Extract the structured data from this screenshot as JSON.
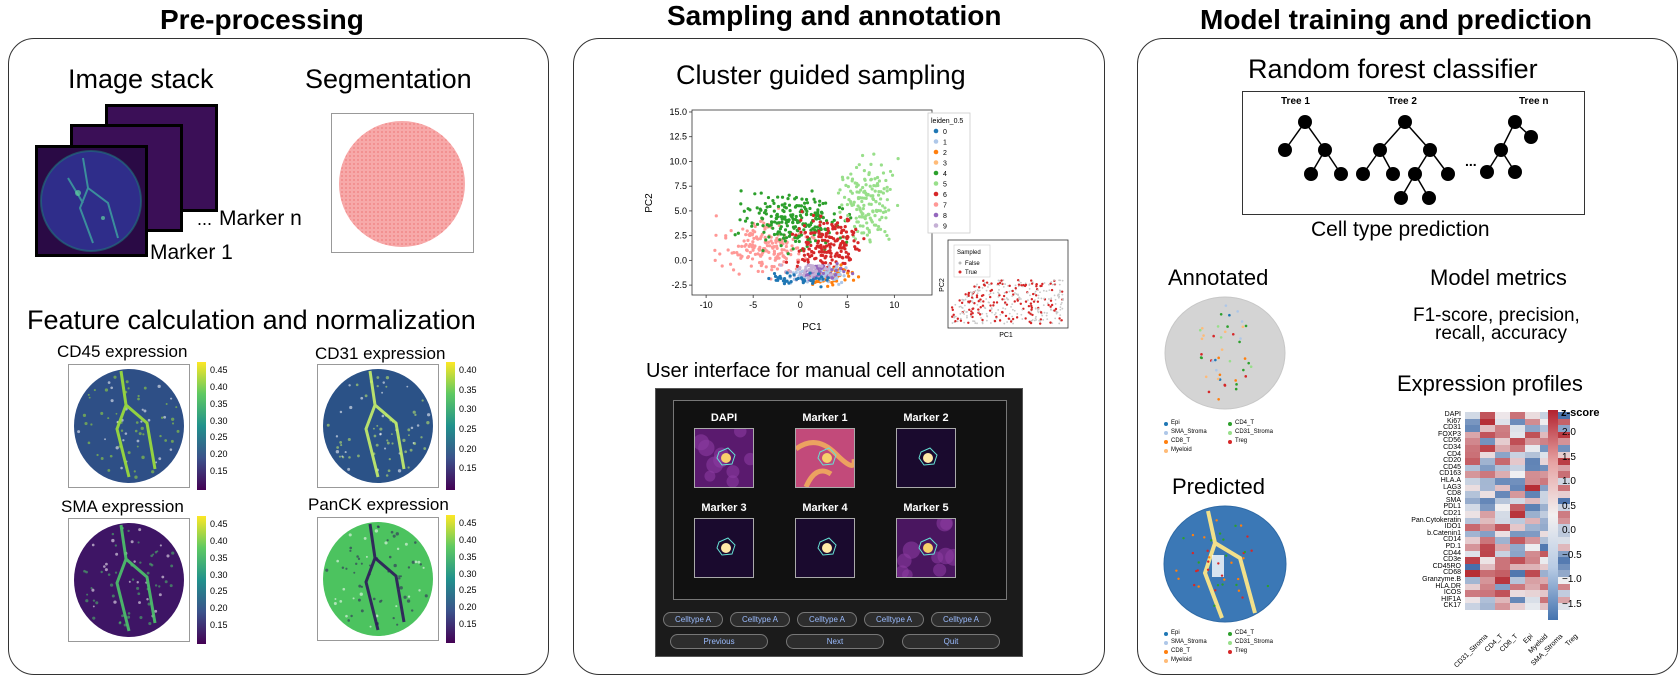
{
  "sections": {
    "preprocessing": "Pre-processing",
    "sampling": "Sampling and annotation",
    "model": "Model training and prediction"
  },
  "preprocessing": {
    "image_stack": "Image stack",
    "segmentation": "Segmentation",
    "marker_n": "Marker n",
    "marker_1": "Marker 1",
    "ellipsis": "...",
    "feature_title": "Feature calculation and normalization",
    "maps": [
      {
        "title": "CD45 expression",
        "ticks": [
          "0.45",
          "0.40",
          "0.35",
          "0.30",
          "0.25",
          "0.20",
          "0.15"
        ]
      },
      {
        "title": "CD31 expression",
        "ticks": [
          "0.40",
          "0.35",
          "0.30",
          "0.25",
          "0.20",
          "0.15"
        ]
      },
      {
        "title": "SMA expression",
        "ticks": [
          "0.45",
          "0.40",
          "0.35",
          "0.30",
          "0.25",
          "0.20",
          "0.15"
        ]
      },
      {
        "title": "PanCK expression",
        "ticks": [
          "0.45",
          "0.40",
          "0.35",
          "0.30",
          "0.25",
          "0.20",
          "0.15"
        ]
      }
    ]
  },
  "sampling": {
    "cluster_title": "Cluster guided sampling",
    "xlabel": "PC1",
    "ylabel": "PC2",
    "yticks": [
      "15.0",
      "12.5",
      "10.0",
      "7.5",
      "5.0",
      "2.5",
      "0.0",
      "-2.5"
    ],
    "xticks": [
      "-10",
      "-5",
      "0",
      "5",
      "10"
    ],
    "legend_title": "leiden_0.5",
    "legend_items": [
      "0",
      "1",
      "2",
      "3",
      "4",
      "5",
      "6",
      "7",
      "8",
      "9"
    ],
    "legend_colors": [
      "#1f77b4",
      "#aec7e8",
      "#ff7f0e",
      "#ffbb78",
      "#2ca02c",
      "#98df8a",
      "#d62728",
      "#ff9896",
      "#9467bd",
      "#c5b0d5"
    ],
    "inset_title": "Sampled",
    "inset_items": [
      "False",
      "True"
    ],
    "inset_xlabel": "PC1",
    "inset_ylabel": "PC2",
    "ui_title": "User interface for manual cell annotation",
    "ui_tiles": [
      "DAPI",
      "Marker 1",
      "Marker 2",
      "Marker 3",
      "Marker 4",
      "Marker 5"
    ],
    "ui_buttons": [
      "Celltype A",
      "Celltype A",
      "Celltype A",
      "Celltype A",
      "Celltype A"
    ],
    "ui_nav": [
      "Previous",
      "Next",
      "Quit"
    ]
  },
  "model": {
    "rf_title": "Random forest classifier",
    "trees": [
      "Tree 1",
      "Tree 2",
      "Tree n"
    ],
    "tree_ellipsis": "...",
    "celltype_pred": "Cell type prediction",
    "annotated": "Annotated",
    "predicted": "Predicted",
    "metrics_title": "Model metrics",
    "metrics_line1": "F1-score, precision,",
    "metrics_line2": "recall, accuracy",
    "expr_title": "Expression profiles",
    "legend_left": [
      "Epi",
      "SMA_Stroma",
      "CD8_T",
      "Myeloid"
    ],
    "legend_right": [
      "CD4_T",
      "CD31_Stroma",
      "Treg"
    ],
    "legend_colors": [
      "#1f77b4",
      "#aec7e8",
      "#ff7f0e",
      "#ffbb78",
      "#2ca02c",
      "#98df8a",
      "#d62728"
    ],
    "heatmap_rows": [
      "DAPI",
      "Ki67",
      "CD31",
      "FOXP3",
      "CD56",
      "CD34",
      "CD4",
      "CD20",
      "CD45",
      "CD163",
      "HLA.A",
      "LAG3",
      "CD8",
      "SMA",
      "PDL1",
      "CD21",
      "Pan.Cytokeratin",
      "IDO1",
      "b.Catenin1",
      "CD14",
      "PD.1",
      "CD44",
      "CD3e",
      "CD45RO",
      "CD68",
      "Granzyme.B",
      "HLA.DR",
      "ICOS",
      "HIF1A",
      "CK17"
    ],
    "heatmap_cols": [
      "CD31_Stroma",
      "CD4_T",
      "CD8_T",
      "Epi",
      "Myeloid",
      "SMA_Stroma",
      "Treg"
    ],
    "zscore_label": "z-score",
    "zscore_ticks": [
      "2.0",
      "1.5",
      "1.0",
      "0.5",
      "0.0",
      "−0.5",
      "−1.0",
      "−1.5"
    ]
  }
}
